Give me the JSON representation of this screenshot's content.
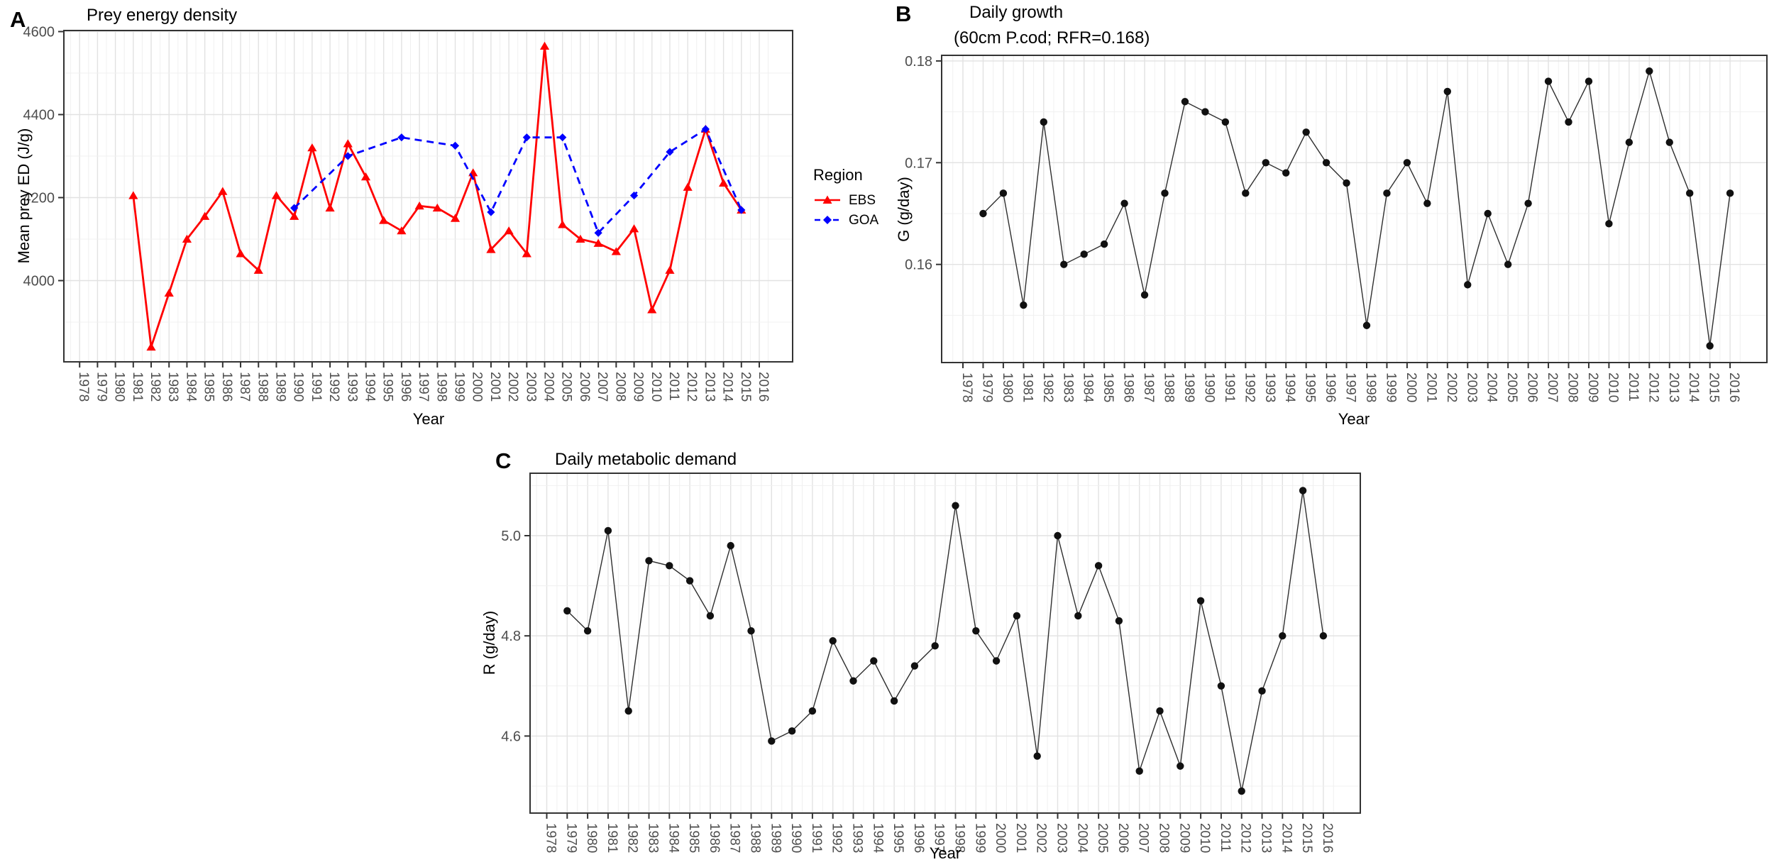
{
  "figure": {
    "panel_a_letter": "A",
    "panel_b_letter": "B",
    "panel_c_letter": "C"
  },
  "colors": {
    "ebs": "#FF0000",
    "goa": "#0000FF",
    "bc_line": "#2E2E2E",
    "bc_point": "#111111",
    "grid_major": "#E2E2E2",
    "grid_minor": "#F0F0F0",
    "panel_border": "#333333",
    "tick": "#333333",
    "axis_text": "#4D4D4D"
  },
  "legend": {
    "title": "Region",
    "items": [
      {
        "label": "EBS",
        "color": "#FF0000",
        "marker": "triangle",
        "line": "solid"
      },
      {
        "label": "GOA",
        "color": "#0000FF",
        "marker": "diamond",
        "line": "dashed"
      }
    ]
  },
  "chart_data": [
    {
      "id": "A",
      "type": "line",
      "title": "Prey energy density",
      "xlabel": "Year",
      "ylabel": "Mean prey ED (J/g)",
      "x_tick_labels": [
        1978,
        1979,
        1980,
        1981,
        1982,
        1983,
        1984,
        1985,
        1986,
        1987,
        1988,
        1989,
        1990,
        1991,
        1992,
        1993,
        1994,
        1995,
        1996,
        1997,
        1998,
        1999,
        2000,
        2001,
        2002,
        2003,
        2004,
        2005,
        2006,
        2007,
        2008,
        2009,
        2010,
        2011,
        2012,
        2013,
        2014,
        2015,
        2016
      ],
      "y_tick_labels": [
        "4000",
        "4200",
        "4400",
        "4600"
      ],
      "y_ticks": [
        4000,
        4200,
        4400,
        4600
      ],
      "ylim": [
        3805,
        4603
      ],
      "legend_position": "right",
      "grid": true,
      "series": [
        {
          "name": "EBS",
          "marker": "triangle",
          "line": "solid",
          "x": [
            1981,
            1982,
            1983,
            1984,
            1985,
            1986,
            1987,
            1988,
            1989,
            1990,
            1991,
            1992,
            1993,
            1994,
            1995,
            1996,
            1997,
            1998,
            1999,
            2000,
            2001,
            2002,
            2003,
            2004,
            2005,
            2006,
            2007,
            2008,
            2009,
            2010,
            2011,
            2012,
            2013,
            2014,
            2015
          ],
          "y": [
            4205,
            3840,
            3970,
            4100,
            4155,
            4215,
            4065,
            4025,
            4205,
            4155,
            4320,
            4175,
            4330,
            4250,
            4145,
            4120,
            4180,
            4175,
            4150,
            4260,
            4075,
            4120,
            4065,
            4565,
            4135,
            4100,
            4090,
            4070,
            4125,
            3930,
            4025,
            4225,
            4365,
            4235,
            4170
          ]
        },
        {
          "name": "GOA",
          "marker": "diamond",
          "line": "dashed",
          "x": [
            1990,
            1993,
            1996,
            1999,
            2001,
            2003,
            2005,
            2007,
            2009,
            2011,
            2013,
            2015
          ],
          "y": [
            4175,
            4300,
            4345,
            4325,
            4165,
            4345,
            4345,
            4115,
            4205,
            4310,
            4365,
            4170
          ]
        }
      ]
    },
    {
      "id": "B",
      "type": "line",
      "title_lines": [
        "Daily growth",
        "(60cm P.cod; RFR=0.168)"
      ],
      "xlabel": "Year",
      "ylabel": "G (g/day)",
      "x_tick_labels": [
        1978,
        1979,
        1980,
        1981,
        1982,
        1983,
        1984,
        1985,
        1986,
        1987,
        1988,
        1989,
        1990,
        1991,
        1992,
        1993,
        1994,
        1995,
        1996,
        1997,
        1998,
        1999,
        2000,
        2001,
        2002,
        2003,
        2004,
        2005,
        2006,
        2007,
        2008,
        2009,
        2010,
        2011,
        2012,
        2013,
        2014,
        2015,
        2016
      ],
      "y_tick_labels": [
        "0.16",
        "0.17",
        "0.18"
      ],
      "y_ticks": [
        0.16,
        0.17,
        0.18
      ],
      "ylim": [
        0.1504,
        0.1806
      ],
      "grid": true,
      "series": [
        {
          "name": "G",
          "marker": "circle",
          "line": "solid",
          "x": [
            1979,
            1980,
            1981,
            1982,
            1983,
            1984,
            1985,
            1986,
            1987,
            1988,
            1989,
            1990,
            1991,
            1992,
            1993,
            1994,
            1995,
            1996,
            1997,
            1998,
            1999,
            2000,
            2001,
            2002,
            2003,
            2004,
            2005,
            2006,
            2007,
            2008,
            2009,
            2010,
            2011,
            2012,
            2013,
            2014,
            2015,
            2016
          ],
          "y": [
            0.165,
            0.167,
            0.156,
            0.174,
            0.16,
            0.161,
            0.162,
            0.166,
            0.157,
            0.167,
            0.176,
            0.175,
            0.174,
            0.167,
            0.17,
            0.169,
            0.173,
            0.17,
            0.168,
            0.154,
            0.167,
            0.17,
            0.166,
            0.177,
            0.158,
            0.165,
            0.16,
            0.166,
            0.178,
            0.174,
            0.178,
            0.164,
            0.172,
            0.179,
            0.172,
            0.167,
            0.152,
            0.167
          ]
        }
      ]
    },
    {
      "id": "C",
      "type": "line",
      "title": "Daily metabolic demand",
      "xlabel": "Year",
      "ylabel": "R (g/day)",
      "x_tick_labels": [
        1978,
        1979,
        1980,
        1981,
        1982,
        1983,
        1984,
        1985,
        1986,
        1987,
        1988,
        1989,
        1990,
        1991,
        1992,
        1993,
        1994,
        1995,
        1996,
        1997,
        1998,
        1999,
        2000,
        2001,
        2002,
        2003,
        2004,
        2005,
        2006,
        2007,
        2008,
        2009,
        2010,
        2011,
        2012,
        2013,
        2014,
        2015,
        2016
      ],
      "y_tick_labels": [
        "4.6",
        "4.8",
        "5.0"
      ],
      "y_ticks": [
        4.6,
        4.8,
        5.0
      ],
      "ylim": [
        4.446,
        5.125
      ],
      "grid": true,
      "series": [
        {
          "name": "R",
          "marker": "circle",
          "line": "solid",
          "x": [
            1979,
            1980,
            1981,
            1982,
            1983,
            1984,
            1985,
            1986,
            1987,
            1988,
            1989,
            1990,
            1991,
            1992,
            1993,
            1994,
            1995,
            1996,
            1997,
            1998,
            1999,
            2000,
            2001,
            2002,
            2003,
            2004,
            2005,
            2006,
            2007,
            2008,
            2009,
            2010,
            2011,
            2012,
            2013,
            2014,
            2015,
            2016
          ],
          "y": [
            4.85,
            4.81,
            5.01,
            4.65,
            4.95,
            4.94,
            4.91,
            4.84,
            4.98,
            4.81,
            4.59,
            4.61,
            4.65,
            4.79,
            4.71,
            4.75,
            4.67,
            4.74,
            4.78,
            5.06,
            4.81,
            4.75,
            4.84,
            4.56,
            5.0,
            4.84,
            4.94,
            4.83,
            4.53,
            4.65,
            4.54,
            4.87,
            4.7,
            4.49,
            4.69,
            4.8,
            5.09,
            4.8
          ]
        }
      ]
    }
  ]
}
